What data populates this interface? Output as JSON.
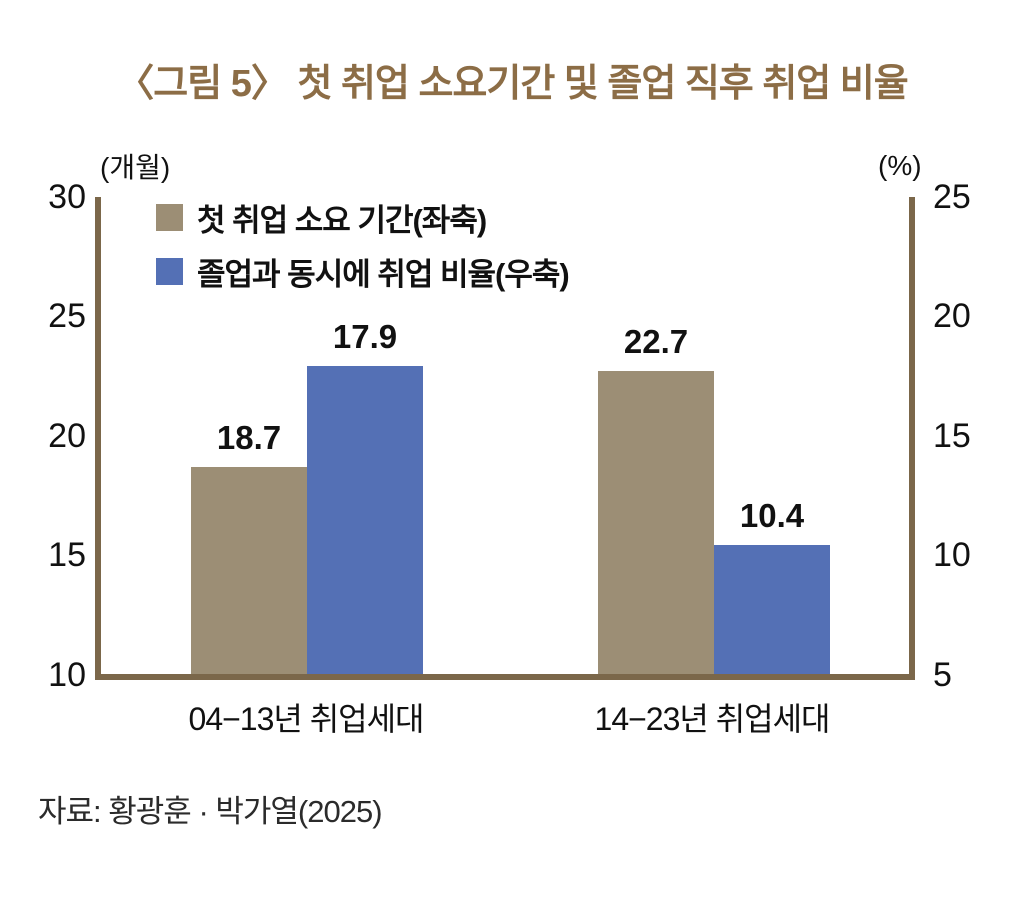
{
  "title": "〈그림 5〉 첫 취업 소요기간 및 졸업 직후 취업 비율",
  "source": "자료: 황광훈 · 박가열(2025)",
  "left_axis": {
    "unit": "(개월)",
    "ticks": [
      "30",
      "25",
      "20",
      "15",
      "10"
    ]
  },
  "right_axis": {
    "unit": "(%)",
    "ticks": [
      "25",
      "20",
      "15",
      "10",
      "5"
    ]
  },
  "legend": [
    {
      "label": "첫 취업 소요 기간(좌축)",
      "color": "#9c8e75"
    },
    {
      "label": "졸업과 동시에 취업 비율(우축)",
      "color": "#5470b5"
    }
  ],
  "colors": {
    "title": "#8c6d46",
    "axis_spine": "#7b674a",
    "bar_tan": "#9c8e75",
    "bar_blue": "#5470b5"
  },
  "chart_data": {
    "type": "bar",
    "title": "〈그림 5〉 첫 취업 소요기간 및 졸업 직후 취업 비율",
    "categories": [
      "04−13년 취업세대",
      "14−23년 취업세대"
    ],
    "series": [
      {
        "name": "첫 취업 소요 기간(좌축)",
        "axis": "left",
        "color": "#9c8e75",
        "values": [
          18.7,
          22.7
        ]
      },
      {
        "name": "졸업과 동시에 취업 비율(우축)",
        "axis": "right",
        "color": "#5470b5",
        "values": [
          17.9,
          10.4
        ]
      }
    ],
    "left_ylabel": "(개월)",
    "right_ylabel": "(%)",
    "left_ylim": [
      10,
      30
    ],
    "right_ylim": [
      5,
      25
    ],
    "grid": false,
    "legend_position": "upper-left"
  }
}
